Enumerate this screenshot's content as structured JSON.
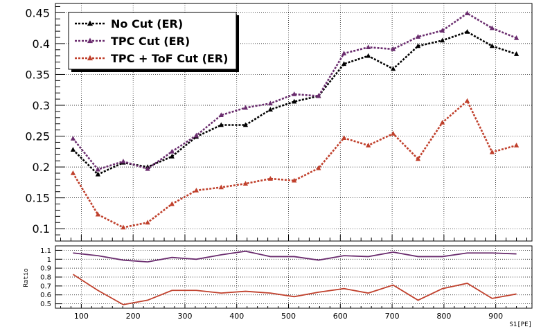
{
  "chart_data": [
    {
      "type": "line",
      "title": "",
      "xlabel": "",
      "ylabel": "",
      "xlim": [
        50,
        970
      ],
      "ylim": [
        0.08,
        0.465
      ],
      "grid": true,
      "legend_position": "top-left",
      "x_ticks": [
        100,
        200,
        300,
        400,
        500,
        600,
        700,
        800,
        900
      ],
      "y_ticks": [
        0.1,
        0.15,
        0.2,
        0.25,
        0.3,
        0.35,
        0.4,
        0.45
      ],
      "y_tick_labels": [
        "0.1",
        "0.15",
        "0.2",
        "0.25",
        "0.3",
        "0.35",
        "0.4",
        "0.45"
      ],
      "x": [
        84,
        132,
        181,
        228,
        275,
        322,
        370,
        417,
        465,
        511,
        558,
        607,
        654,
        702,
        750,
        797,
        845,
        893,
        940
      ],
      "series": [
        {
          "name": "No Cut (ER)",
          "color": "#000000",
          "marker": "triangle",
          "values": [
            0.228,
            0.188,
            0.207,
            0.2,
            0.217,
            0.249,
            0.268,
            0.268,
            0.293,
            0.306,
            0.315,
            0.367,
            0.38,
            0.359,
            0.396,
            0.405,
            0.419,
            0.396,
            0.383
          ]
        },
        {
          "name": "TPC Cut (ER)",
          "color": "#6a2c6e",
          "marker": "triangle",
          "values": [
            0.246,
            0.196,
            0.209,
            0.197,
            0.225,
            0.251,
            0.284,
            0.296,
            0.303,
            0.318,
            0.315,
            0.384,
            0.394,
            0.391,
            0.411,
            0.421,
            0.449,
            0.425,
            0.409
          ]
        },
        {
          "name": "TPC + ToF Cut (ER)",
          "color": "#c0402c",
          "marker": "triangle",
          "values": [
            0.19,
            0.123,
            0.102,
            0.11,
            0.14,
            0.162,
            0.167,
            0.173,
            0.181,
            0.178,
            0.198,
            0.247,
            0.235,
            0.254,
            0.213,
            0.272,
            0.307,
            0.224,
            0.235
          ]
        }
      ]
    },
    {
      "type": "line",
      "xlabel": "S1[PE]",
      "ylabel": "Ratio",
      "xlim": [
        50,
        970
      ],
      "ylim": [
        0.45,
        1.15
      ],
      "grid": true,
      "x_ticks": [
        100,
        200,
        300,
        400,
        500,
        600,
        700,
        800,
        900
      ],
      "x_tick_labels": [
        "100",
        "200",
        "300",
        "400",
        "500",
        "600",
        "700",
        "800",
        "900"
      ],
      "y_ticks": [
        0.5,
        0.6,
        0.7,
        0.8,
        0.9,
        1.0,
        1.1
      ],
      "y_tick_labels": [
        "0.5",
        "0.6",
        "0.7",
        "0.8",
        "0.9",
        "1",
        "1.1"
      ],
      "x": [
        84,
        132,
        181,
        228,
        275,
        322,
        370,
        417,
        465,
        511,
        558,
        607,
        654,
        702,
        750,
        797,
        845,
        893,
        940
      ],
      "series": [
        {
          "color": "#6a2c6e",
          "values": [
            1.07,
            1.04,
            0.99,
            0.97,
            1.02,
            1.0,
            1.05,
            1.09,
            1.03,
            1.03,
            0.99,
            1.04,
            1.03,
            1.08,
            1.03,
            1.03,
            1.07,
            1.07,
            1.06
          ]
        },
        {
          "color": "#c0402c",
          "values": [
            0.83,
            0.65,
            0.49,
            0.54,
            0.65,
            0.65,
            0.62,
            0.64,
            0.62,
            0.58,
            0.63,
            0.67,
            0.62,
            0.71,
            0.54,
            0.67,
            0.73,
            0.56,
            0.61
          ]
        }
      ]
    }
  ]
}
